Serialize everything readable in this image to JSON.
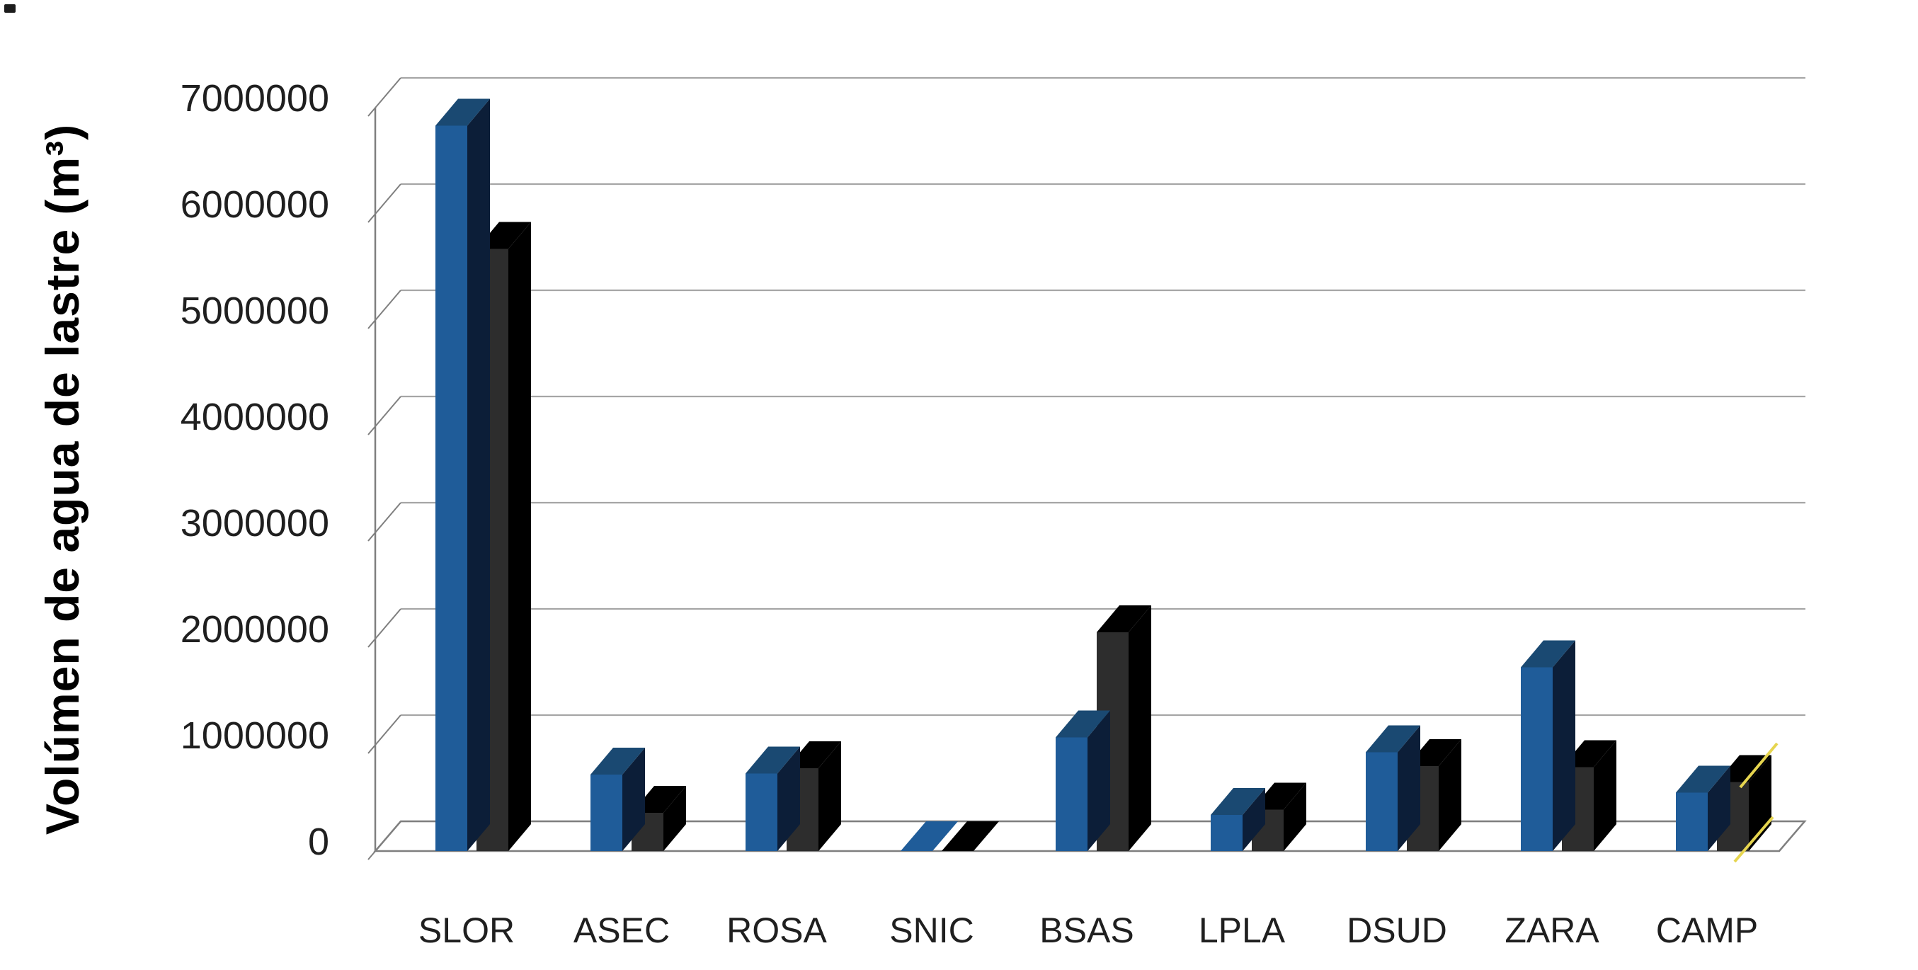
{
  "chart_data": {
    "type": "bar",
    "subtype": "3d-clustered-column",
    "title": "",
    "ylabel": "Volúmen de agua de lastre (m³)",
    "xlabel": "",
    "categories": [
      "SLOR",
      "ASEC",
      "ROSA",
      "SNIC",
      "BSAS",
      "LPLA",
      "DSUD",
      "ZARA",
      "CAMP"
    ],
    "series": [
      {
        "name": "blue-series",
        "color": "#1F5C99",
        "values": [
          6830000,
          720000,
          730000,
          0,
          1070000,
          340000,
          930000,
          1730000,
          550000
        ]
      },
      {
        "name": "black-series",
        "color": "#111111",
        "values": [
          5670000,
          360000,
          780000,
          0,
          2060000,
          390000,
          800000,
          790000,
          650000
        ]
      }
    ],
    "ylim": [
      0,
      7000000
    ],
    "ytick_step": 1000000,
    "ytick_labels": [
      "0",
      "1000000",
      "2000000",
      "3000000",
      "4000000",
      "5000000",
      "6000000",
      "7000000"
    ],
    "grid": true,
    "legend": "none",
    "annotations": [
      {
        "type": "line",
        "color": "#E6D54F",
        "note": "yellow diagonal segment at floor near CAMP"
      },
      {
        "type": "line",
        "color": "#E6D54F",
        "note": "second parallel yellow diagonal segment over CAMP black bar"
      }
    ]
  },
  "colors": {
    "blue_front": "#1F5C99",
    "blue_top": "#1A4972",
    "blue_side": "#0C1E38",
    "blue_flat": "#1F5C99",
    "black_front": "#2D2D2D",
    "black_top": "#000000",
    "black_side": "#000000",
    "black_flat": "#000000",
    "gridline": "#A6A6A6",
    "axis_line": "#7F7F7F",
    "text": "#1F1F1F",
    "background": "#FFFFFF",
    "annotation_yellow": "#E6D54F"
  }
}
